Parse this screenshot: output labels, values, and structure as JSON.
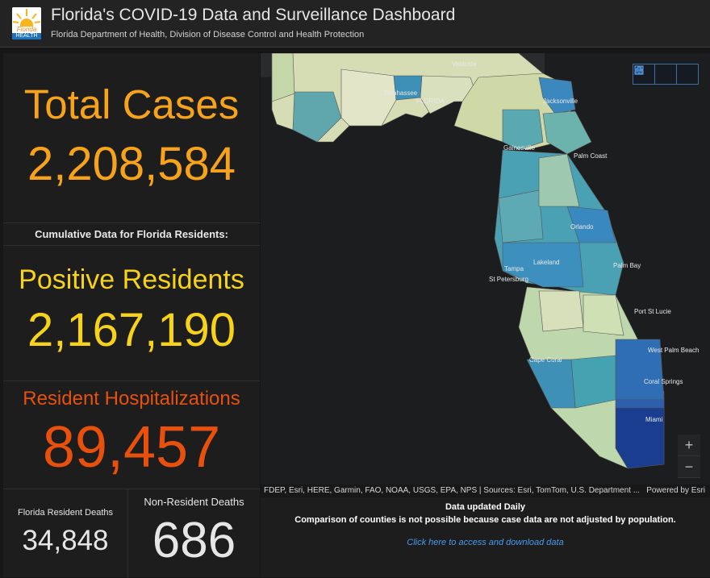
{
  "header": {
    "logo_text": "Florida",
    "logo_sub": "HEALTH",
    "title": "Florida's COVID-19 Data and Surveillance Dashboard",
    "subtitle": "Florida Department of Health, Division of Disease Control and Health Protection"
  },
  "total_cases": {
    "label": "Total Cases",
    "value": "2,208,584"
  },
  "cumulative_label": "Cumulative Data for Florida Residents:",
  "positive_residents": {
    "label": "Positive Residents",
    "value": "2,167,190"
  },
  "hospitalizations": {
    "label": "Resident Hospitalizations",
    "value": "89,457"
  },
  "resident_deaths": {
    "label": "Florida Resident Deaths",
    "value": "34,848"
  },
  "nonresident_deaths": {
    "label": "Non-Resident Deaths",
    "value": "686"
  },
  "map": {
    "cities": [
      "Valdosta",
      "Tallahassee",
      "FLORIDA",
      "Jacksonville",
      "Gainesville",
      "Palm Coast",
      "Orlando",
      "Lakeland",
      "Tampa",
      "St Petersburg",
      "Palm Bay",
      "Port St Lucie",
      "Cape Coral",
      "West Palm Beach",
      "Coral Springs",
      "Miami"
    ],
    "buttons": [
      "home-icon",
      "list-icon",
      "grid-icon"
    ],
    "zoom_in": "+",
    "zoom_out": "−"
  },
  "attribution": {
    "left": "FDEP, Esri, HERE, Garmin, FAO, NOAA, USGS, EPA, NPS | Sources: Esri, TomTom, U.S. Department ...",
    "right": "Powered by Esri"
  },
  "footer": {
    "updated": "Data updated Daily",
    "note": "Comparison of counties is not possible because case data are not adjusted by population.",
    "link": "Click here to access and download data"
  },
  "colors": {
    "orange": "#f7a21b",
    "yellow": "#f7d21b",
    "red_orange": "#e8500e",
    "gray_num": "#e6e6e6",
    "map_light": "#d9dfb8",
    "map_mid": "#4aa1b3",
    "map_dark": "#1a3d8f"
  }
}
